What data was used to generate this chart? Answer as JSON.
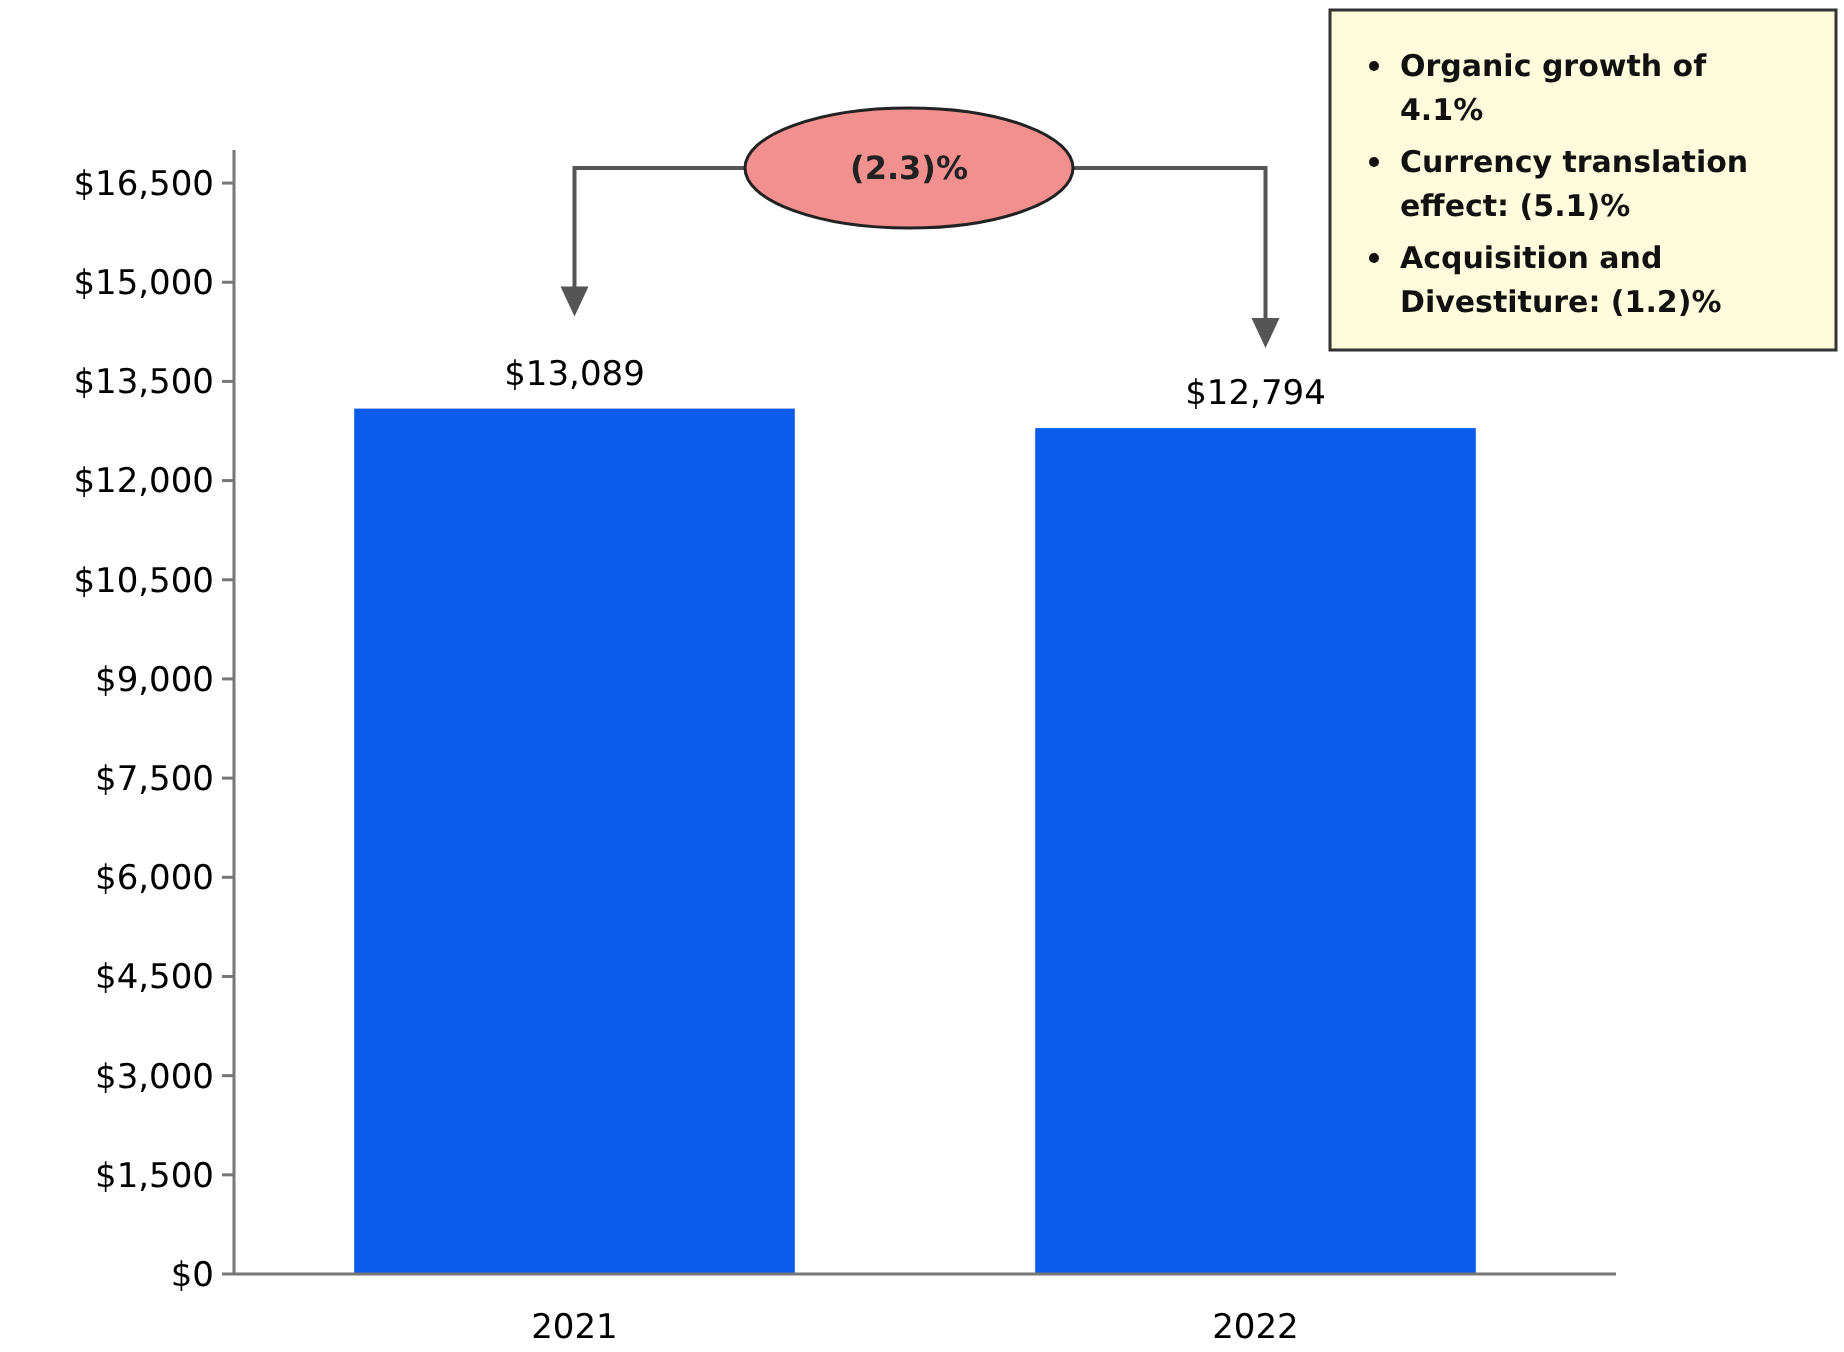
{
  "chart_data": {
    "type": "bar",
    "categories": [
      "2021",
      "2022"
    ],
    "values": [
      13089,
      12794
    ],
    "color": "#0b5cec",
    "value_labels": [
      "$13,089",
      "$12,794"
    ],
    "ylim": [
      0,
      17000
    ],
    "yticks": [
      {
        "value": 0,
        "label": "$0"
      },
      {
        "value": 1500,
        "label": "$1,500"
      },
      {
        "value": 3000,
        "label": "$3,000"
      },
      {
        "value": 4500,
        "label": "$4,500"
      },
      {
        "value": 6000,
        "label": "$6,000"
      },
      {
        "value": 7500,
        "label": "$7,500"
      },
      {
        "value": 9000,
        "label": "$9,000"
      },
      {
        "value": 10500,
        "label": "$10,500"
      },
      {
        "value": 12000,
        "label": "$12,000"
      },
      {
        "value": 13500,
        "label": "$13,500"
      },
      {
        "value": 15000,
        "label": "$15,000"
      },
      {
        "value": 16500,
        "label": "$16,500"
      }
    ],
    "grid": false,
    "annotations": [
      "(2.3)%",
      "Organic growth of 4.1%",
      "Currency translation effect: (5.1)%",
      "Acquisition and Divestiture: (1.2)%"
    ]
  }
}
